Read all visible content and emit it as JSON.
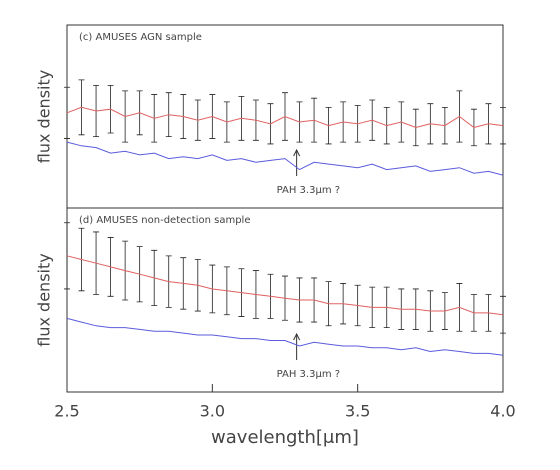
{
  "chart_data": [
    {
      "type": "line",
      "title": "(c) AMUSES AGN sample",
      "ylabel": "flux density",
      "annotation": "PAH 3.3μm ?",
      "annotation_x": 3.29,
      "x": [
        2.5,
        2.55,
        2.6,
        2.65,
        2.7,
        2.75,
        2.8,
        2.85,
        2.9,
        2.95,
        3.0,
        3.05,
        3.1,
        3.15,
        3.2,
        3.25,
        3.3,
        3.35,
        3.4,
        3.45,
        3.5,
        3.55,
        3.6,
        3.65,
        3.7,
        3.75,
        3.8,
        3.85,
        3.9,
        3.95,
        4.0
      ],
      "xlim": [
        2.5,
        4.0
      ],
      "ylim": [
        0,
        1
      ],
      "series": [
        {
          "color": "#e06060",
          "values": [
            0.52,
            0.55,
            0.53,
            0.54,
            0.5,
            0.52,
            0.49,
            0.51,
            0.5,
            0.48,
            0.5,
            0.47,
            0.49,
            0.48,
            0.46,
            0.5,
            0.47,
            0.48,
            0.45,
            0.47,
            0.46,
            0.48,
            0.45,
            0.47,
            0.44,
            0.46,
            0.45,
            0.5,
            0.44,
            0.46,
            0.45
          ],
          "errors": [
            0.14,
            0.15,
            0.14,
            0.13,
            0.14,
            0.12,
            0.13,
            0.12,
            0.12,
            0.11,
            0.12,
            0.11,
            0.12,
            0.11,
            0.11,
            0.13,
            0.11,
            0.12,
            0.1,
            0.11,
            0.1,
            0.11,
            0.1,
            0.11,
            0.1,
            0.11,
            0.1,
            0.14,
            0.1,
            0.11,
            0.1
          ]
        },
        {
          "color": "#5b5bdd",
          "values": [
            0.36,
            0.34,
            0.33,
            0.3,
            0.31,
            0.29,
            0.3,
            0.27,
            0.28,
            0.27,
            0.29,
            0.26,
            0.27,
            0.25,
            0.26,
            0.27,
            0.21,
            0.25,
            0.24,
            0.23,
            0.22,
            0.24,
            0.21,
            0.22,
            0.23,
            0.2,
            0.21,
            0.22,
            0.19,
            0.2,
            0.18
          ]
        }
      ]
    },
    {
      "type": "line",
      "title": "(d) AMUSES non-detection sample",
      "ylabel": "flux density",
      "xlabel": "wavelength[μm]",
      "annotation": "PAH 3.3μm ?",
      "annotation_x": 3.29,
      "x": [
        2.5,
        2.55,
        2.6,
        2.65,
        2.7,
        2.75,
        2.8,
        2.85,
        2.9,
        2.95,
        3.0,
        3.05,
        3.1,
        3.15,
        3.2,
        3.25,
        3.3,
        3.35,
        3.4,
        3.45,
        3.5,
        3.55,
        3.6,
        3.65,
        3.7,
        3.75,
        3.8,
        3.85,
        3.9,
        3.95,
        4.0
      ],
      "xlim": [
        2.5,
        4.0
      ],
      "ylim": [
        0,
        1
      ],
      "xticks": [
        {
          "value": 2.5,
          "label": "2.5"
        },
        {
          "value": 3,
          "label": "3.0"
        },
        {
          "value": 3.5,
          "label": "3.5"
        },
        {
          "value": 4,
          "label": "4.0"
        }
      ],
      "series": [
        {
          "color": "#e06060",
          "values": [
            0.74,
            0.72,
            0.7,
            0.68,
            0.66,
            0.64,
            0.62,
            0.6,
            0.59,
            0.58,
            0.56,
            0.55,
            0.54,
            0.53,
            0.52,
            0.51,
            0.5,
            0.5,
            0.48,
            0.48,
            0.47,
            0.46,
            0.46,
            0.45,
            0.45,
            0.44,
            0.44,
            0.46,
            0.43,
            0.43,
            0.42
          ],
          "errors": [
            0.18,
            0.17,
            0.17,
            0.16,
            0.16,
            0.15,
            0.15,
            0.14,
            0.14,
            0.14,
            0.13,
            0.13,
            0.13,
            0.13,
            0.12,
            0.12,
            0.12,
            0.12,
            0.12,
            0.11,
            0.11,
            0.11,
            0.11,
            0.11,
            0.11,
            0.11,
            0.1,
            0.13,
            0.1,
            0.1,
            0.1
          ]
        },
        {
          "color": "#5b5bdd",
          "values": [
            0.4,
            0.38,
            0.36,
            0.35,
            0.35,
            0.34,
            0.33,
            0.33,
            0.32,
            0.31,
            0.31,
            0.3,
            0.29,
            0.29,
            0.28,
            0.28,
            0.25,
            0.27,
            0.26,
            0.25,
            0.25,
            0.24,
            0.24,
            0.23,
            0.24,
            0.22,
            0.23,
            0.22,
            0.21,
            0.21,
            0.2
          ]
        }
      ]
    }
  ]
}
